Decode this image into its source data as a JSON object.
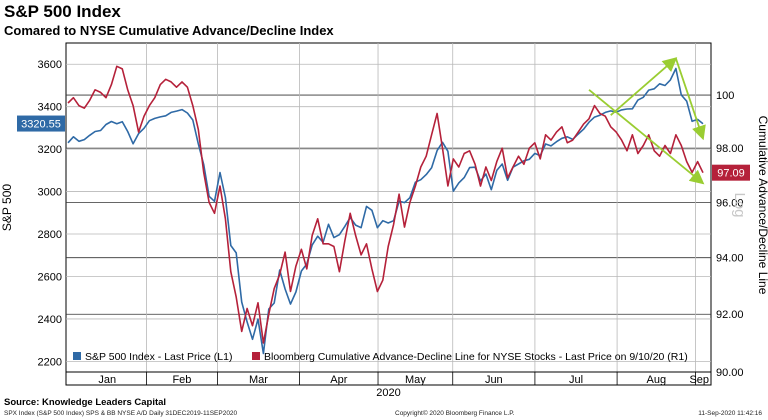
{
  "title": "S&P 500 Index",
  "subtitle": "Comared to NYSE Cumulative Advance/Decline Index",
  "source": "Source: Knowledge Leaders Capital",
  "footer": {
    "left": "SPX Index (S&P 500 Index) SPS & BB NYSE A/D  Daily 31DEC2019-11SEP2020",
    "center": "Copyright© 2020 Bloomberg Finance L.P.",
    "right": "11-Sep-2020 11:42:16"
  },
  "chart_data": {
    "type": "line",
    "ylabel": "S&P 500",
    "y2label": "Cumulative Advance/Decline Line",
    "y2_scale_note": "Log",
    "ylim": [
      2150,
      3700
    ],
    "y2lim": [
      90.0,
      102.0
    ],
    "yticks": [
      "2200",
      "2400",
      "2600",
      "2800",
      "3000",
      "3200",
      "3400",
      "3600"
    ],
    "y2ticks": [
      "90.00",
      "92.00",
      "94.00",
      "96.00",
      "98.00",
      "100"
    ],
    "months": [
      "Jan",
      "Feb",
      "Mar",
      "Apr",
      "May",
      "Jun",
      "Jul",
      "Aug",
      "Sep"
    ],
    "year_label": "2020",
    "grid": true,
    "legend_position": "bottom-left",
    "spx_last_label": "3320.55",
    "ad_last_label": "97.09",
    "series": [
      {
        "name": "S&P 500 Index - Last Price (L1)",
        "axis": "left",
        "color": "#2f6aa6",
        "values": [
          3230,
          3258,
          3237,
          3245,
          3265,
          3283,
          3288,
          3316,
          3330,
          3320,
          3329,
          3283,
          3225,
          3273,
          3298,
          3334,
          3345,
          3352,
          3357,
          3373,
          3379,
          3386,
          3370,
          3337,
          3225,
          3128,
          2978,
          2954,
          3090,
          2972,
          2746,
          2711,
          2480,
          2386,
          2304,
          2399,
          2237,
          2447,
          2475,
          2630,
          2541,
          2470,
          2527,
          2626,
          2659,
          2749,
          2790,
          2761,
          2846,
          2783,
          2797,
          2836,
          2878,
          2842,
          2830,
          2930,
          2912,
          2830,
          2863,
          2852,
          2863,
          2955,
          2948,
          2971,
          3044,
          3056,
          3080,
          3112,
          3193,
          3232,
          3190,
          3002,
          3041,
          3066,
          3113,
          3115,
          3050,
          3083,
          3009,
          3100,
          3130,
          3053,
          3115,
          3130,
          3145,
          3152,
          3180,
          3169,
          3224,
          3215,
          3235,
          3251,
          3258,
          3246,
          3271,
          3294,
          3327,
          3351,
          3360,
          3373,
          3380,
          3374,
          3385,
          3389,
          3390,
          3431,
          3444,
          3478,
          3484,
          3508,
          3500,
          3526,
          3580,
          3455,
          3426,
          3331,
          3340,
          3320
        ]
      },
      {
        "name": "Bloomberg Cumulative Advance-Decline Line for NYSE Stocks - Last Price on 9/10/20 (R1)",
        "axis": "right",
        "color": "#b5213a",
        "values": [
          99.7,
          99.9,
          99.6,
          99.5,
          99.8,
          100.2,
          100.1,
          99.9,
          100.4,
          101.1,
          101.0,
          100.2,
          99.6,
          98.6,
          99.2,
          99.6,
          99.9,
          100.4,
          100.6,
          100.5,
          100.3,
          100.5,
          100.3,
          99.6,
          98.7,
          97.1,
          96.0,
          95.6,
          96.6,
          95.4,
          93.5,
          92.6,
          91.4,
          92.2,
          91.6,
          92.4,
          91.0,
          92.0,
          92.9,
          93.4,
          94.2,
          92.8,
          93.7,
          94.3,
          93.6,
          94.8,
          95.4,
          94.5,
          94.5,
          94.4,
          93.5,
          94.6,
          95.6,
          94.8,
          94.1,
          94.5,
          93.6,
          92.8,
          93.2,
          94.4,
          95.2,
          96.3,
          95.1,
          96.0,
          96.6,
          97.3,
          97.7,
          98.5,
          99.3,
          98.0,
          96.6,
          97.6,
          97.3,
          97.8,
          97.9,
          97.4,
          96.6,
          97.3,
          96.8,
          97.5,
          98.0,
          96.9,
          97.3,
          97.7,
          97.4,
          98.0,
          98.2,
          97.6,
          98.5,
          98.3,
          98.6,
          98.8,
          98.2,
          98.3,
          98.6,
          98.9,
          99.1,
          99.6,
          99.3,
          99.2,
          98.8,
          98.6,
          98.3,
          97.9,
          98.5,
          97.8,
          98.1,
          98.5,
          97.9,
          97.7,
          98.1,
          97.8,
          98.5,
          98.1,
          97.5,
          97.1,
          97.5,
          97.09
        ]
      }
    ],
    "annotations": [
      {
        "type": "arrow",
        "color": "#9acd32",
        "axis": "left",
        "from_index": 100,
        "from_value": 3360,
        "to_index": 112,
        "to_value": 3628
      },
      {
        "type": "arrow",
        "color": "#9acd32",
        "axis": "left",
        "from_index": 112,
        "from_value": 3628,
        "to_index": 117,
        "to_value": 3250
      },
      {
        "type": "arrow",
        "color": "#9acd32",
        "axis": "right",
        "from_index": 96,
        "from_value": 100.2,
        "to_index": 117,
        "to_value": 96.7
      }
    ]
  }
}
